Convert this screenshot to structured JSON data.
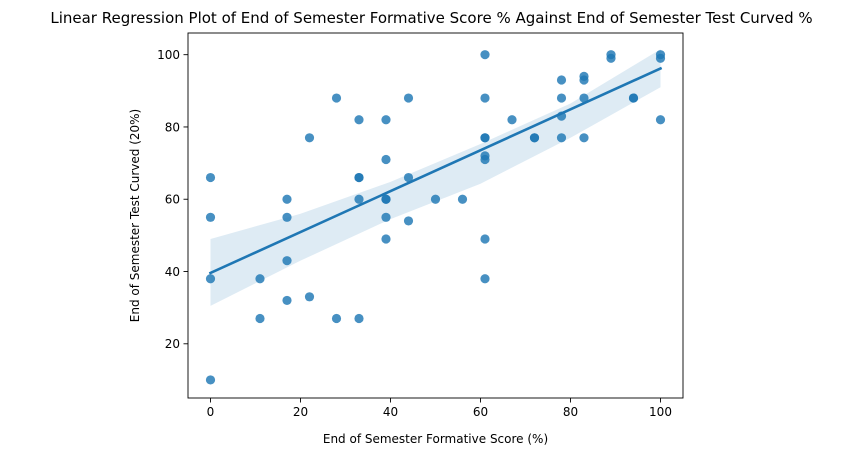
{
  "chart_data": {
    "type": "scatter",
    "title": "Linear Regression Plot of End of Semester Formative Score % Against End of Semester Test Curved %",
    "xlabel": "End of Semester Formative Score (%)",
    "ylabel": "End of Semester Test Curved (20%)",
    "xlim": [
      -5,
      105
    ],
    "ylim": [
      5,
      106
    ],
    "xticks": [
      0,
      20,
      40,
      60,
      80,
      100
    ],
    "yticks": [
      20,
      40,
      60,
      80,
      100
    ],
    "grid": false,
    "legend": "none",
    "colors": {
      "points": "#1f77b4",
      "line": "#1f77b4",
      "band": "#1f77b4"
    },
    "points": [
      {
        "x": 0,
        "y": 66
      },
      {
        "x": 0,
        "y": 55
      },
      {
        "x": 0,
        "y": 38
      },
      {
        "x": 0,
        "y": 10
      },
      {
        "x": 11,
        "y": 38
      },
      {
        "x": 11,
        "y": 27
      },
      {
        "x": 17,
        "y": 60
      },
      {
        "x": 17,
        "y": 55
      },
      {
        "x": 17,
        "y": 43
      },
      {
        "x": 17,
        "y": 32
      },
      {
        "x": 22,
        "y": 77
      },
      {
        "x": 22,
        "y": 33
      },
      {
        "x": 28,
        "y": 88
      },
      {
        "x": 28,
        "y": 27
      },
      {
        "x": 33,
        "y": 82
      },
      {
        "x": 33,
        "y": 66
      },
      {
        "x": 33,
        "y": 66
      },
      {
        "x": 33,
        "y": 60
      },
      {
        "x": 33,
        "y": 27
      },
      {
        "x": 39,
        "y": 82
      },
      {
        "x": 39,
        "y": 71
      },
      {
        "x": 39,
        "y": 60
      },
      {
        "x": 39,
        "y": 60
      },
      {
        "x": 39,
        "y": 55
      },
      {
        "x": 39,
        "y": 49
      },
      {
        "x": 44,
        "y": 88
      },
      {
        "x": 44,
        "y": 66
      },
      {
        "x": 44,
        "y": 54
      },
      {
        "x": 50,
        "y": 60
      },
      {
        "x": 56,
        "y": 60
      },
      {
        "x": 61,
        "y": 100
      },
      {
        "x": 61,
        "y": 88
      },
      {
        "x": 61,
        "y": 77
      },
      {
        "x": 61,
        "y": 77
      },
      {
        "x": 61,
        "y": 72
      },
      {
        "x": 61,
        "y": 71
      },
      {
        "x": 61,
        "y": 49
      },
      {
        "x": 61,
        "y": 38
      },
      {
        "x": 67,
        "y": 82
      },
      {
        "x": 72,
        "y": 77
      },
      {
        "x": 72,
        "y": 77
      },
      {
        "x": 78,
        "y": 93
      },
      {
        "x": 78,
        "y": 88
      },
      {
        "x": 78,
        "y": 83
      },
      {
        "x": 78,
        "y": 77
      },
      {
        "x": 83,
        "y": 94
      },
      {
        "x": 83,
        "y": 93
      },
      {
        "x": 83,
        "y": 88
      },
      {
        "x": 83,
        "y": 77
      },
      {
        "x": 89,
        "y": 100
      },
      {
        "x": 89,
        "y": 99
      },
      {
        "x": 94,
        "y": 88
      },
      {
        "x": 94,
        "y": 88
      },
      {
        "x": 100,
        "y": 100
      },
      {
        "x": 100,
        "y": 99
      },
      {
        "x": 100,
        "y": 82
      }
    ],
    "regression": {
      "x": [
        0,
        100
      ],
      "y": [
        39.6,
        96.2
      ]
    },
    "confidence_band": {
      "x": [
        0,
        20,
        40,
        60,
        80,
        100
      ],
      "upper": [
        49.0,
        56.0,
        64.8,
        75.3,
        86.5,
        101.5
      ],
      "lower": [
        30.5,
        43.0,
        54.5,
        64.3,
        77.0,
        91.0
      ]
    }
  }
}
